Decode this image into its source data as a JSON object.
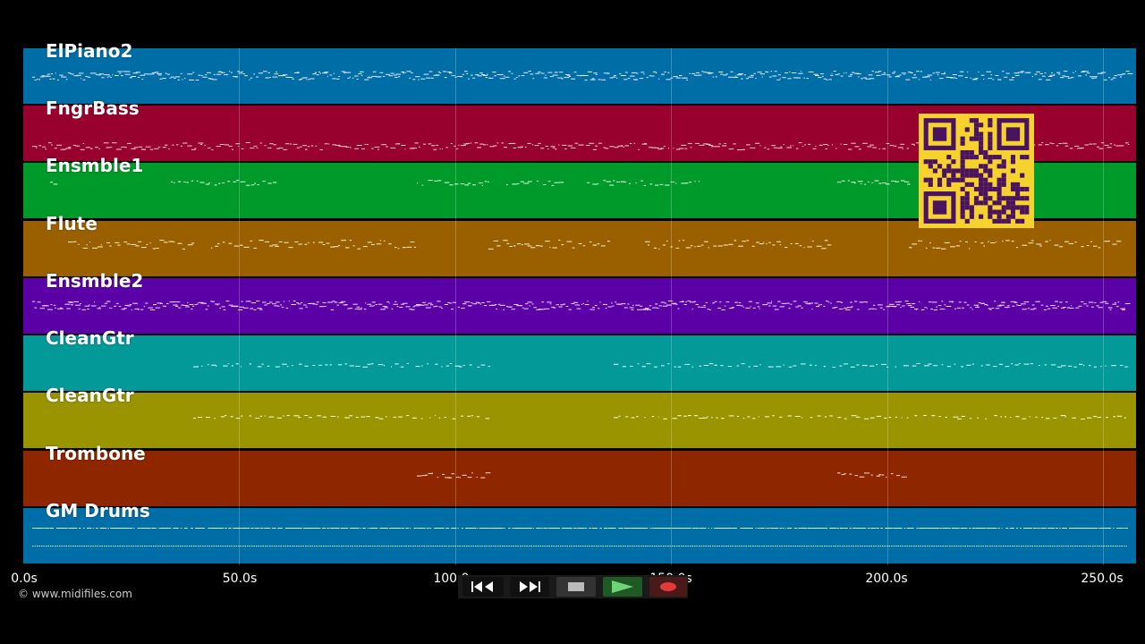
{
  "tracks": [
    {
      "name": "ElPiano2",
      "color": "#006ea6"
    },
    {
      "name": "FngrBass",
      "color": "#98002e"
    },
    {
      "name": "Ensmble1",
      "color": "#009a2a"
    },
    {
      "name": "Flute",
      "color": "#9a6000"
    },
    {
      "name": "Ensmble2",
      "color": "#5b00a6"
    },
    {
      "name": "CleanGtr",
      "color": "#049999"
    },
    {
      "name": "CleanGtr",
      "color": "#999400"
    },
    {
      "name": "Trombone",
      "color": "#8e2600"
    },
    {
      "name": "GM Drums",
      "color": "#006ea6"
    }
  ],
  "timeline": {
    "ticks": [
      "0.0s",
      "50.0s",
      "100.0s",
      "150.0s",
      "200.0s",
      "250.0s"
    ],
    "tick_seconds": [
      0,
      50,
      100,
      150,
      200,
      250
    ],
    "max_seconds": 258
  },
  "credit": "© www.midifiles.com",
  "transport": {
    "rewind": "rewind-icon",
    "fast_forward": "fast-forward-icon",
    "stop": "stop-icon",
    "play": "play-icon",
    "record": "record-icon"
  },
  "overlay": {
    "type": "qr-code",
    "color": "#f6d22f"
  }
}
